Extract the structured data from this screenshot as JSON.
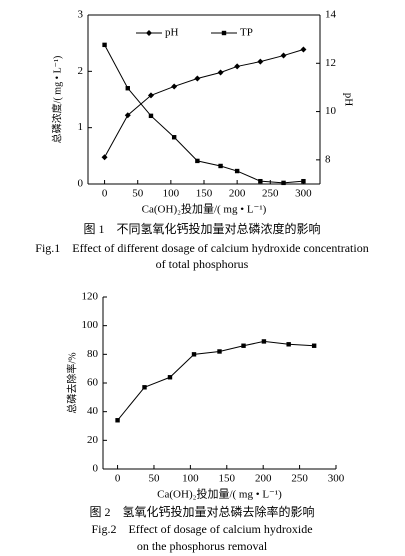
{
  "chart_data": [
    {
      "type": "line",
      "x_label": "Ca(OH)₂投加量/( mg • L⁻¹)",
      "y_label": "总磷浓度/( mg • L⁻¹)",
      "y2_label": "pH",
      "x": [
        0,
        35,
        70,
        105,
        140,
        175,
        200,
        235,
        270,
        300
      ],
      "series": [
        {
          "name": "pH",
          "color": "#000000",
          "marker": "diamond",
          "axis": "y2",
          "values": [
            8.11,
            9.85,
            10.67,
            11.04,
            11.37,
            11.62,
            11.87,
            12.07,
            12.32,
            12.57
          ]
        },
        {
          "name": "TP",
          "color": "#000000",
          "marker": "square",
          "values": [
            2.47,
            1.7,
            1.21,
            0.83,
            0.41,
            0.32,
            0.23,
            0.05,
            0.02,
            0.05
          ]
        }
      ],
      "xlim": [
        -25,
        325
      ],
      "xticks": [
        0,
        50,
        100,
        150,
        200,
        250,
        300
      ],
      "ylim": [
        0,
        3
      ],
      "yticks": [
        0,
        1,
        2,
        3
      ],
      "y2lim": [
        7,
        14
      ],
      "y2ticks": [
        8,
        10,
        12,
        14
      ],
      "legend": "top",
      "caption": [
        "图 1　不同氢氧化钙投加量对总磷浓度的影响",
        "Fig.1　Effect of different dosage of calcium hydroxide concentration",
        "of total phosphorus"
      ]
    },
    {
      "type": "line",
      "x_label": "Ca(OH)₂投加量/( mg • L⁻¹)",
      "y_label": "总磷去除率/%",
      "x": [
        0,
        37,
        72,
        105,
        140,
        173,
        201,
        235,
        270
      ],
      "series": [
        {
          "color": "#000000",
          "marker": "square",
          "values": [
            34,
            57,
            64,
            80,
            82,
            86,
            89,
            87,
            86
          ]
        }
      ],
      "xlim": [
        -20,
        300
      ],
      "xticks": [
        0,
        50,
        100,
        150,
        200,
        250,
        300
      ],
      "ylim": [
        0,
        120
      ],
      "yticks": [
        0,
        20,
        40,
        60,
        80,
        100,
        120
      ],
      "caption": [
        "图 2　氢氧化钙投加量对总磷去除率的影响",
        "Fig.2　Effect of dosage of calcium hydroxide",
        "on the phosphorus removal"
      ]
    }
  ]
}
